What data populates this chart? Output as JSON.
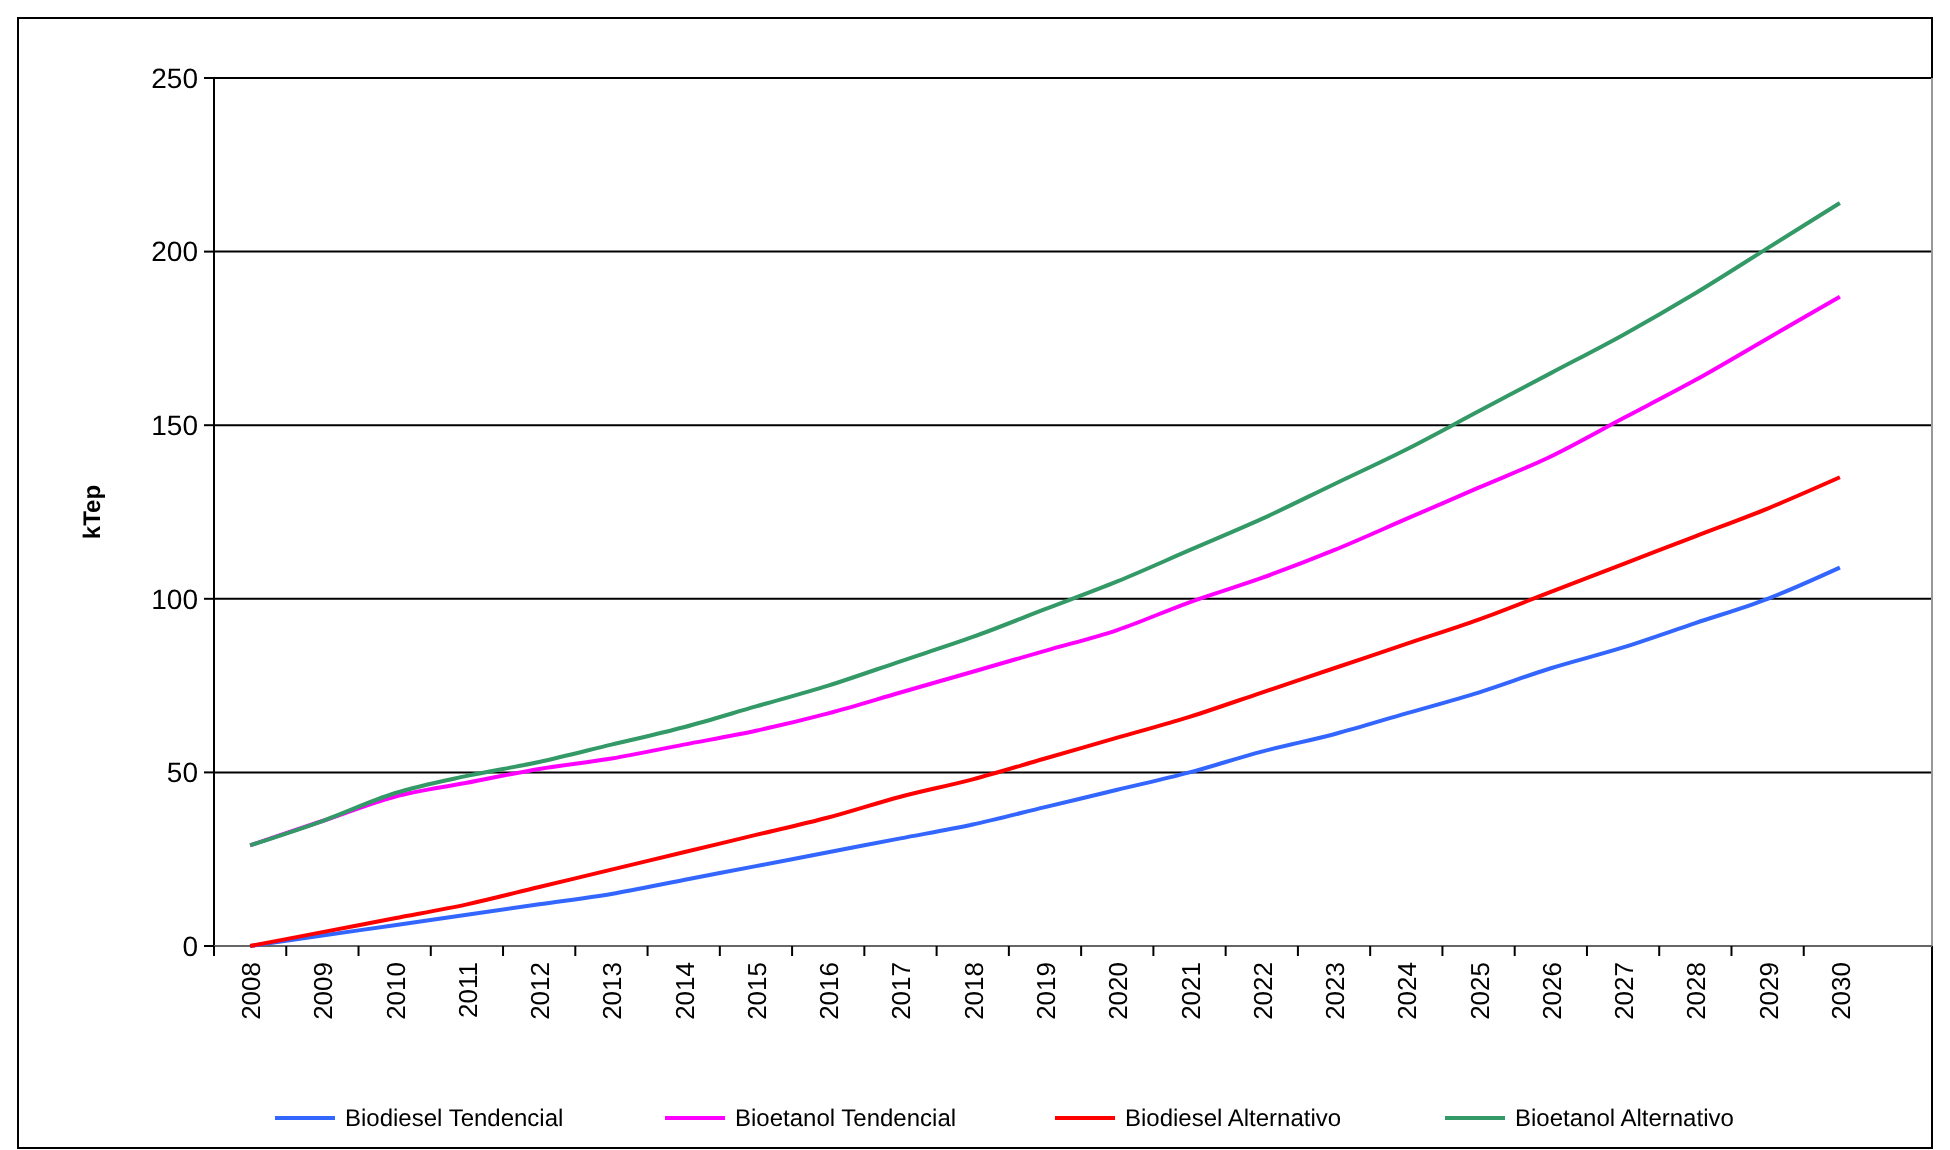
{
  "chart_data": {
    "type": "line",
    "ylabel": "kTep",
    "categories": [
      "2008",
      "2009",
      "2010",
      "2011",
      "2012",
      "2013",
      "2014",
      "2015",
      "2016",
      "2017",
      "2018",
      "2019",
      "2020",
      "2021",
      "2022",
      "2023",
      "2024",
      "2025",
      "2026",
      "2027",
      "2028",
      "2029",
      "2030"
    ],
    "series": [
      {
        "name": "Biodiesel Tendencial",
        "color": "#3366ff",
        "values": [
          0,
          3,
          6,
          9,
          12,
          15,
          19,
          23,
          27,
          31,
          35,
          40,
          45,
          50,
          56,
          61,
          67,
          73,
          80,
          86,
          93,
          100,
          109
        ]
      },
      {
        "name": "Bioetanol Tendencial",
        "color": "#ff00ff",
        "values": [
          29,
          36,
          43,
          47,
          51,
          54,
          58,
          62,
          67,
          73,
          79,
          85,
          91,
          99,
          106,
          114,
          123,
          132,
          141,
          152,
          163,
          175,
          187
        ]
      },
      {
        "name": "Biodiesel Alternativo",
        "color": "#ff0000",
        "values": [
          0,
          4,
          8,
          12,
          17,
          22,
          27,
          32,
          37,
          43,
          48,
          54,
          60,
          66,
          73,
          80,
          87,
          94,
          102,
          110,
          118,
          126,
          135
        ]
      },
      {
        "name": "Bioetanol Alternativo",
        "color": "#339966",
        "values": [
          29,
          36,
          44,
          49,
          53,
          58,
          63,
          69,
          75,
          82,
          89,
          97,
          105,
          114,
          123,
          133,
          143,
          154,
          165,
          176,
          188,
          201,
          214
        ]
      }
    ],
    "ylim": [
      0,
      250
    ],
    "yticks": [
      0,
      50,
      100,
      150,
      200,
      250
    ],
    "grid": "y",
    "legend": "bottom",
    "marker": "none",
    "line_style": "solid"
  }
}
